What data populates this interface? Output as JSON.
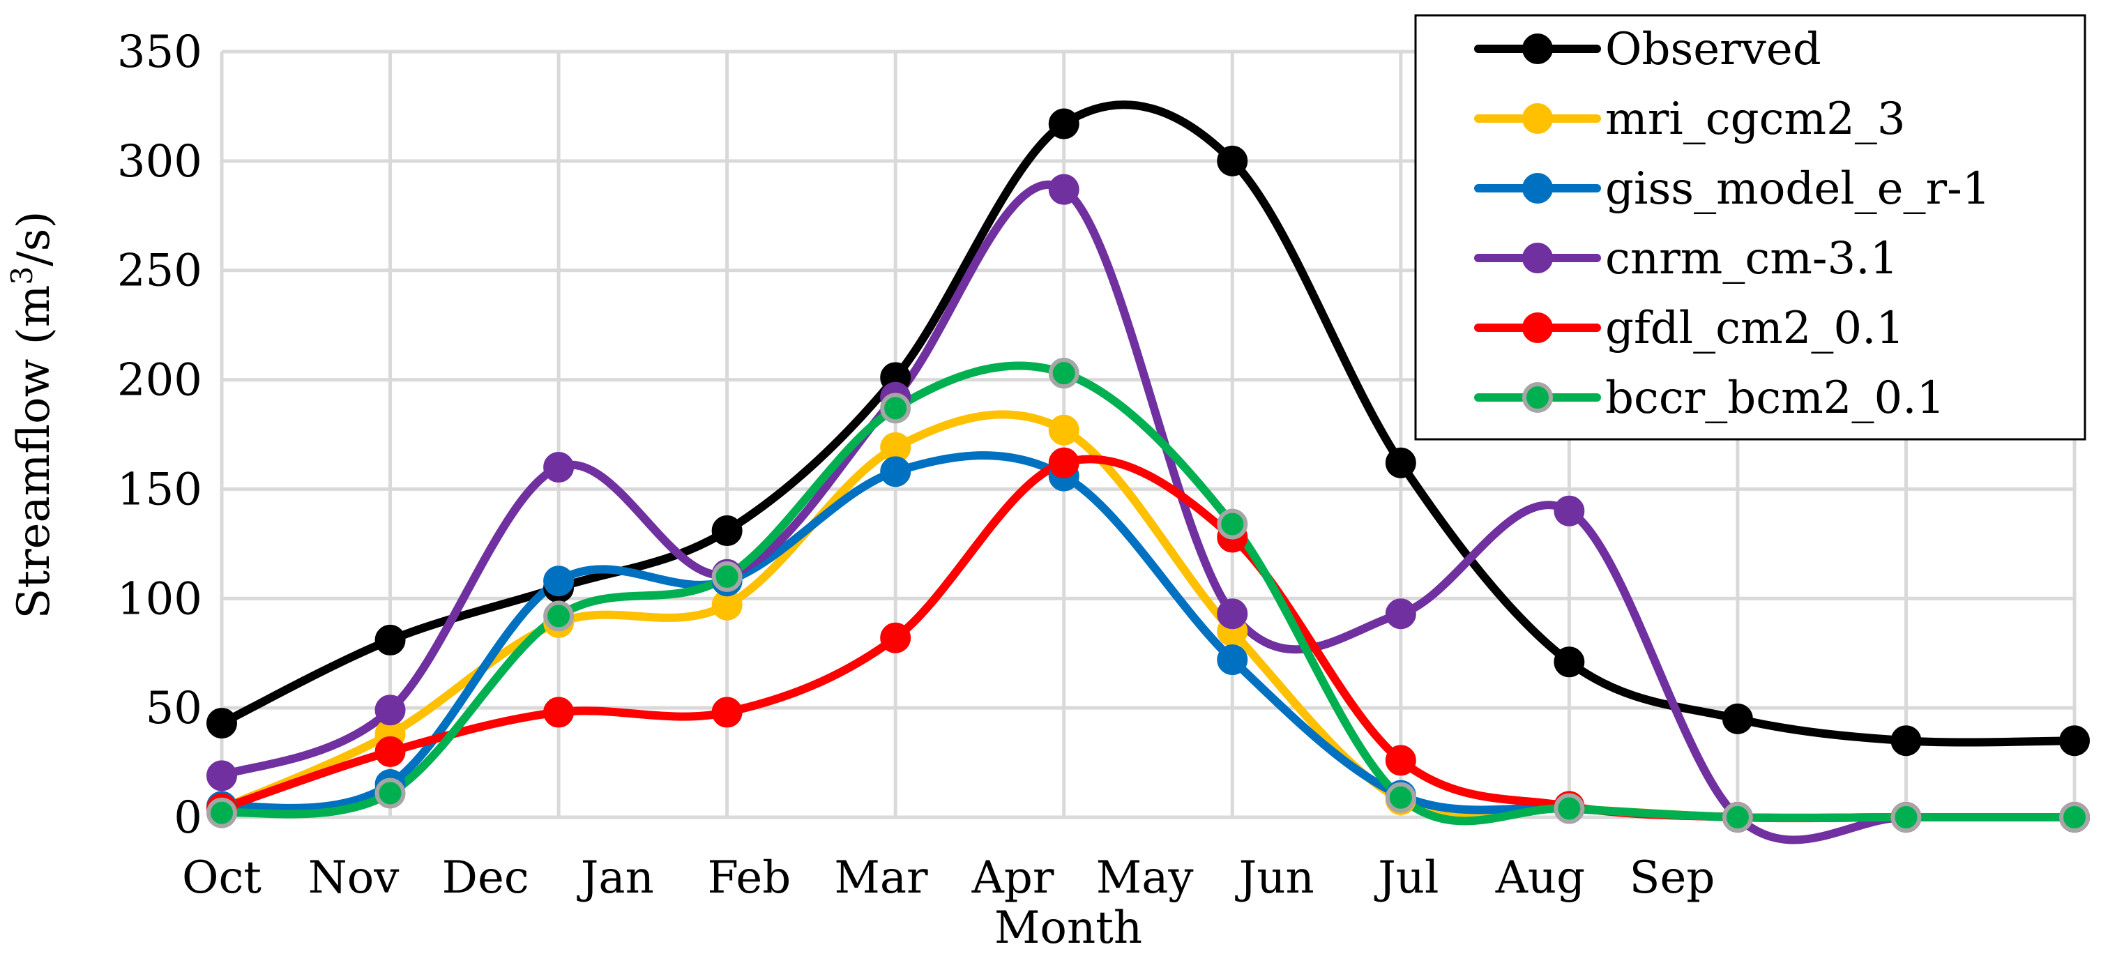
{
  "chart_data": {
    "type": "line",
    "title": "",
    "xlabel": "Month",
    "ylabel": "Streamflow (m3/s)",
    "ylabel_parts": {
      "base": "Streamflow (m",
      "sup": "3",
      "end": "/s)"
    },
    "ylim": [
      0,
      350
    ],
    "yticks": [
      0,
      50,
      100,
      150,
      200,
      250,
      300,
      350
    ],
    "x_tick_labels": [
      "Oct",
      "Nov",
      "Dec",
      "Jan",
      "Feb",
      "Mar",
      "Apr",
      "May",
      "Jun",
      "Jul",
      "Aug",
      "Sep"
    ],
    "grid": true,
    "smoothed": true,
    "legend_position": "top-right",
    "series": [
      {
        "name": "Observed",
        "color": "#000000",
        "marker": "#000000",
        "marker_edge": "#000000",
        "values": [
          43,
          81,
          105,
          131,
          201,
          317,
          300,
          162,
          71,
          45,
          35,
          35
        ]
      },
      {
        "name": "mri_cgcm2_3",
        "color": "#ffc000",
        "marker": "#ffc000",
        "marker_edge": "#ffc000",
        "values": [
          4,
          38,
          89,
          97,
          169,
          177,
          85,
          8,
          4,
          0,
          0,
          0
        ]
      },
      {
        "name": "giss_model_e_r-1",
        "color": "#0070c0",
        "marker": "#0070c0",
        "marker_edge": "#0070c0",
        "values": [
          5,
          15,
          108,
          108,
          158,
          156,
          72,
          10,
          4,
          0,
          0,
          0
        ]
      },
      {
        "name": "cnrm_cm-3.1",
        "color": "#7030a0",
        "marker": "#7030a0",
        "marker_edge": "#7030a0",
        "values": [
          19,
          49,
          160,
          111,
          192,
          287,
          93,
          93,
          140,
          0,
          0,
          0
        ]
      },
      {
        "name": "gfdl_cm2_0.1",
        "color": "#ff0000",
        "marker": "#ff0000",
        "marker_edge": "#ff0000",
        "values": [
          4,
          30,
          48,
          48,
          82,
          162,
          128,
          26,
          5,
          0,
          0,
          0
        ]
      },
      {
        "name": "bccr_bcm2_0.1",
        "color": "#00b050",
        "marker": "#00b050",
        "marker_edge": "#a6a6a6",
        "values": [
          2,
          11,
          92,
          110,
          187,
          203,
          134,
          9,
          4,
          0,
          0,
          0
        ]
      }
    ]
  }
}
